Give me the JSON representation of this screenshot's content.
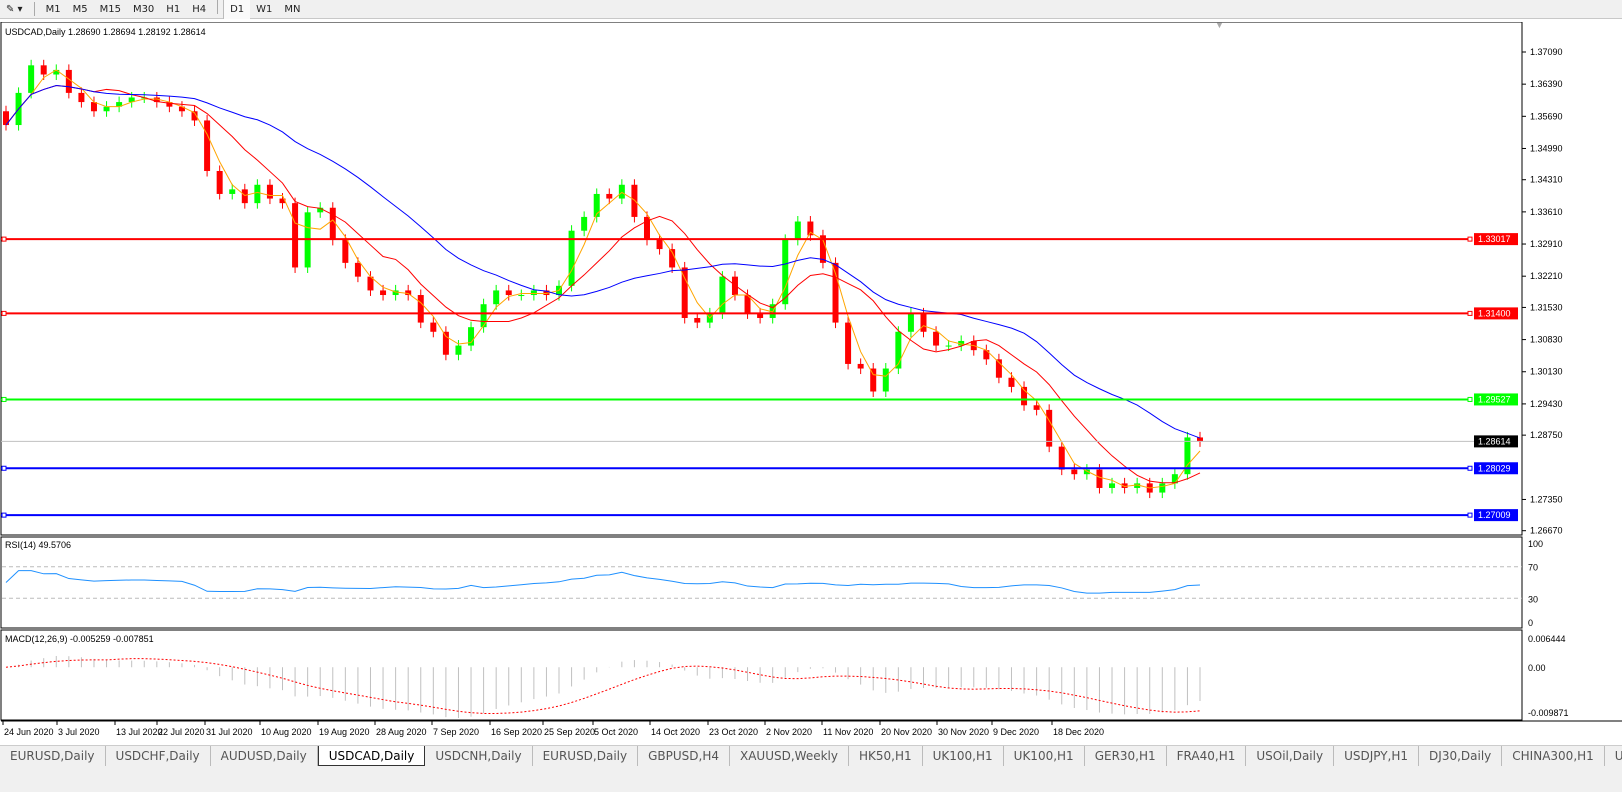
{
  "toolbar": {
    "timeframes": [
      "M1",
      "M5",
      "M15",
      "M30",
      "H1",
      "H4",
      "D1",
      "W1",
      "MN"
    ],
    "active": "D1"
  },
  "chart": {
    "header": "USDCAD,Daily  1.28690 1.28694 1.28192 1.28614",
    "price_axis": [
      "1.37090",
      "1.36390",
      "1.35690",
      "1.34990",
      "1.34310",
      "1.33610",
      "1.32910",
      "1.32210",
      "1.31530",
      "1.30830",
      "1.30130",
      "1.29430",
      "1.28750",
      "1.27350",
      "1.26670"
    ],
    "current_price": "1.28614",
    "levels": [
      {
        "price": "1.33017",
        "color": "#ff0000"
      },
      {
        "price": "1.31400",
        "color": "#ff0000"
      },
      {
        "price": "1.29527",
        "color": "#00ff00"
      },
      {
        "price": "1.28029",
        "color": "#0000ff"
      },
      {
        "price": "1.27009",
        "color": "#0000ff"
      }
    ],
    "date_axis": [
      "24 Jun 2020",
      "3 Jul 2020",
      "13 Jul 2020",
      "22 Jul 2020",
      "31 Jul 2020",
      "10 Aug 2020",
      "19 Aug 2020",
      "28 Aug 2020",
      "7 Sep 2020",
      "16 Sep 2020",
      "25 Sep 2020",
      "5 Oct 2020",
      "14 Oct 2020",
      "23 Oct 2020",
      "2 Nov 2020",
      "11 Nov 2020",
      "20 Nov 2020",
      "30 Nov 2020",
      "9 Dec 2020",
      "18 Dec 2020"
    ],
    "colors": {
      "bull": "#00ff00",
      "bear": "#ff0000",
      "ma_fast": "#ffa500",
      "ma_mid": "#ff0000",
      "ma_slow": "#0000ff",
      "rsi": "#1e90ff",
      "macd_signal": "#ff0000",
      "macd_hist": "#c0c0c0"
    }
  },
  "rsi": {
    "label": "RSI(14) 49.5706",
    "axis": [
      "100",
      "70",
      "30",
      "0"
    ]
  },
  "macd": {
    "label": "MACD(12,26,9) -0.005259 -0.007851",
    "axis": [
      "0.006444",
      "0.00",
      "-0.009871"
    ]
  },
  "chart_data": {
    "type": "candlestick",
    "symbol": "USDCAD",
    "timeframe": "Daily",
    "ylim": [
      1.2667,
      1.3709
    ],
    "close": [
      1.355,
      1.362,
      1.368,
      1.366,
      1.367,
      1.362,
      1.36,
      1.358,
      1.359,
      1.36,
      1.361,
      1.361,
      1.36,
      1.359,
      1.358,
      1.356,
      1.345,
      1.34,
      1.341,
      1.338,
      1.342,
      1.339,
      1.338,
      1.324,
      1.336,
      1.337,
      1.33,
      1.325,
      1.322,
      1.319,
      1.318,
      1.319,
      1.318,
      1.312,
      1.31,
      1.305,
      1.307,
      1.311,
      1.316,
      1.319,
      1.318,
      1.318,
      1.319,
      1.318,
      1.32,
      1.332,
      1.335,
      1.34,
      1.339,
      1.342,
      1.335,
      1.33,
      1.328,
      1.324,
      1.313,
      1.312,
      1.314,
      1.322,
      1.318,
      1.314,
      1.313,
      1.316,
      1.33,
      1.334,
      1.331,
      1.325,
      1.312,
      1.303,
      1.302,
      1.297,
      1.302,
      1.31,
      1.314,
      1.31,
      1.307,
      1.307,
      1.308,
      1.306,
      1.304,
      1.3,
      1.298,
      1.294,
      1.293,
      1.285,
      1.28,
      1.279,
      1.28,
      1.276,
      1.277,
      1.276,
      1.277,
      1.275,
      1.277,
      1.279,
      1.287,
      1.28614
    ]
  },
  "tabs": [
    "EURUSD,Daily",
    "USDCHF,Daily",
    "AUDUSD,Daily",
    "USDCAD,Daily",
    "USDCNH,Daily",
    "EURUSD,Daily",
    "GBPUSD,H4",
    "XAUUSD,Weekly",
    "HK50,H1",
    "UK100,H1",
    "UK100,H1",
    "GER30,H1",
    "FRA40,H1",
    "USOil,Daily",
    "USDJPY,H1",
    "DJ30,Daily",
    "CHINA300,H1",
    "US"
  ],
  "active_tab": "USDCAD,Daily"
}
